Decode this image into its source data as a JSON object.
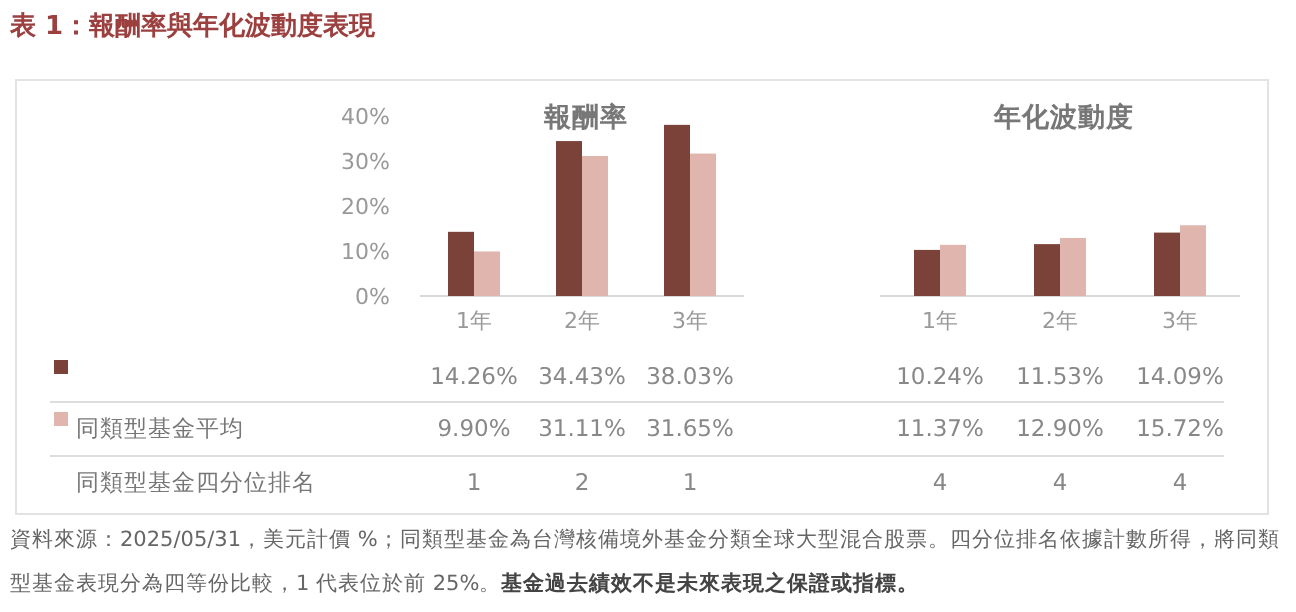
{
  "chart_data": [
    {
      "type": "bar",
      "title": "報酬率",
      "categories": [
        "1年",
        "2年",
        "3年"
      ],
      "series": [
        {
          "color": "#7a4238",
          "values": [
            14.26,
            34.43,
            38.03
          ],
          "value_labels": [
            "14.26%",
            "34.43%",
            "38.03%"
          ]
        },
        {
          "name": "同類型基金平均",
          "color": "#e0b5ad",
          "values": [
            9.9,
            31.11,
            31.65
          ],
          "value_labels": [
            "9.90%",
            "31.11%",
            "31.65%"
          ]
        }
      ],
      "ylim": [
        0,
        40
      ],
      "yticks": [
        {
          "value": 0,
          "label": "0%"
        },
        {
          "value": 10,
          "label": "10%"
        },
        {
          "value": 20,
          "label": "20%"
        },
        {
          "value": 30,
          "label": "30%"
        },
        {
          "value": 40,
          "label": "40%"
        }
      ],
      "annotations": [
        "表 1：報酬率與年化波動度表現",
        "同類型基金四分位排名",
        "1",
        "2",
        "1",
        "資料來源：2025/05/31，美元計價 %；同類型基金為台灣核備境外基金分類全球大型混合股票。四分位排名依據計數所得，將同類型基金表現分為四等份比較，1 代表位於前 25%。**基金過去績效不是未來表現之保證或指標。**"
      ]
    },
    {
      "type": "bar",
      "title": "年化波動度",
      "categories": [
        "1年",
        "2年",
        "3年"
      ],
      "series": [
        {
          "color": "#7a4238",
          "values": [
            10.24,
            11.53,
            14.09
          ],
          "value_labels": [
            "10.24%",
            "11.53%",
            "14.09%"
          ]
        },
        {
          "color": "#e0b5ad",
          "values": [
            11.37,
            12.9,
            15.72
          ],
          "value_labels": [
            "11.37%",
            "12.90%",
            "15.72%"
          ]
        }
      ],
      "ylim": [
        0,
        40
      ],
      "tick_labels": "x",
      "annotations": [
        "4",
        "4",
        "4"
      ]
    }
  ]
}
